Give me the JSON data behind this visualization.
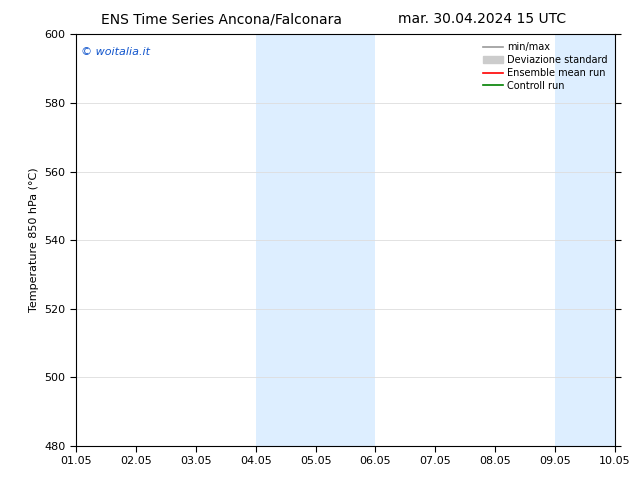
{
  "title_left": "ENS Time Series Ancona/Falconara",
  "title_right": "mar. 30.04.2024 15 UTC",
  "ylabel": "Temperature 850 hPa (°C)",
  "watermark": "© woitalia.it",
  "ylim": [
    480,
    600
  ],
  "yticks": [
    480,
    500,
    520,
    540,
    560,
    580,
    600
  ],
  "xtick_labels": [
    "01.05",
    "02.05",
    "03.05",
    "04.05",
    "05.05",
    "06.05",
    "07.05",
    "08.05",
    "09.05",
    "10.05"
  ],
  "xtick_positions": [
    0,
    1,
    2,
    3,
    4,
    5,
    6,
    7,
    8,
    9
  ],
  "xlim": [
    0,
    9
  ],
  "shaded_regions": [
    {
      "xstart": 3,
      "xend": 5,
      "color": "#ddeeff"
    },
    {
      "xstart": 8,
      "xend": 9,
      "color": "#ddeeff"
    }
  ],
  "bg_color": "#ffffff",
  "plot_bg_color": "#ffffff",
  "legend_entries": [
    {
      "label": "min/max",
      "type": "line",
      "color": "#999999",
      "lw": 1.2
    },
    {
      "label": "Deviazione standard",
      "type": "patch",
      "color": "#cccccc"
    },
    {
      "label": "Ensemble mean run",
      "type": "line",
      "color": "#ff0000",
      "lw": 1.2
    },
    {
      "label": "Controll run",
      "type": "line",
      "color": "#008000",
      "lw": 1.2
    }
  ],
  "title_fontsize": 10,
  "axis_fontsize": 8,
  "tick_fontsize": 8,
  "watermark_color": "#1155cc",
  "grid_color": "#dddddd",
  "spine_color": "#000000"
}
